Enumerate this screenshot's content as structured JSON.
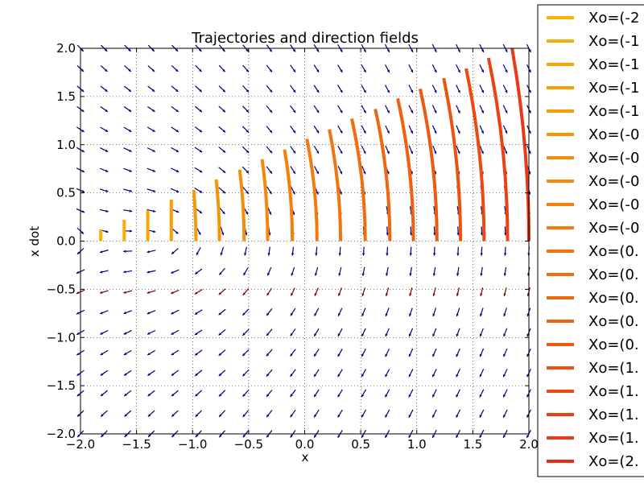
{
  "chart_data": {
    "type": "line",
    "title": "Trajectories and direction fields",
    "xlabel": "x",
    "ylabel": "x dot",
    "xlim": [
      -2.0,
      2.0
    ],
    "ylim": [
      -2.0,
      2.0
    ],
    "x_ticks": [
      "−2.0",
      "−1.5",
      "−1.0",
      "−0.5",
      "0.0",
      "0.5",
      "1.0",
      "1.5",
      "2.0"
    ],
    "y_ticks": [
      "−2.0",
      "−1.5",
      "−1.0",
      "−0.5",
      "0.0",
      "0.5",
      "1.0",
      "1.5",
      "2.0"
    ],
    "grid": true,
    "legend_position": "upper right, outside plot",
    "series": [
      {
        "name": "Xo=(-2",
        "color": "#fbb003",
        "points": [
          [
            -1.82,
            0.0
          ],
          [
            -1.82,
            0.12
          ]
        ]
      },
      {
        "name": "Xo=(-1",
        "color": "#fbab03",
        "points": [
          [
            -1.61,
            0.0
          ],
          [
            -1.61,
            0.22
          ]
        ]
      },
      {
        "name": "Xo=(-1",
        "color": "#faa504",
        "points": [
          [
            -1.4,
            0.0
          ],
          [
            -1.4,
            0.32
          ]
        ]
      },
      {
        "name": "Xo=(-1",
        "color": "#f99f05",
        "points": [
          [
            -1.19,
            0.0
          ],
          [
            -1.19,
            0.43
          ]
        ]
      },
      {
        "name": "Xo=(-1",
        "color": "#f89906",
        "points": [
          [
            -0.97,
            0.0
          ],
          [
            -0.99,
            0.53
          ]
        ]
      },
      {
        "name": "Xo=(-0",
        "color": "#f79307",
        "points": [
          [
            -0.76,
            0.0
          ],
          [
            -0.79,
            0.64
          ]
        ]
      },
      {
        "name": "Xo=(-0",
        "color": "#f68d08",
        "points": [
          [
            -0.54,
            0.0
          ],
          [
            -0.58,
            0.74
          ]
        ]
      },
      {
        "name": "Xo=(-0",
        "color": "#f58709",
        "points": [
          [
            -0.33,
            0.0
          ],
          [
            -0.38,
            0.85
          ]
        ]
      },
      {
        "name": "Xo=(-0",
        "color": "#f4800a",
        "points": [
          [
            -0.11,
            0.0
          ],
          [
            -0.18,
            0.95
          ]
        ]
      },
      {
        "name": "Xo=(-0",
        "color": "#f37a0b",
        "points": [
          [
            0.11,
            0.0
          ],
          [
            0.02,
            1.06
          ]
        ]
      },
      {
        "name": "Xo=(0.",
        "color": "#f2740c",
        "points": [
          [
            0.32,
            0.0
          ],
          [
            0.22,
            1.16
          ]
        ]
      },
      {
        "name": "Xo=(0.",
        "color": "#f16d0d",
        "points": [
          [
            0.54,
            0.0
          ],
          [
            0.42,
            1.27
          ]
        ]
      },
      {
        "name": "Xo=(0.",
        "color": "#f0670e",
        "points": [
          [
            0.76,
            0.0
          ],
          [
            0.63,
            1.37
          ]
        ]
      },
      {
        "name": "Xo=(0.",
        "color": "#ef600f",
        "points": [
          [
            0.97,
            0.0
          ],
          [
            0.83,
            1.48
          ]
        ]
      },
      {
        "name": "Xo=(0.",
        "color": "#ee5910",
        "points": [
          [
            1.18,
            0.0
          ],
          [
            1.03,
            1.58
          ]
        ]
      },
      {
        "name": "Xo=(1.",
        "color": "#ed5211",
        "points": [
          [
            1.39,
            0.0
          ],
          [
            1.24,
            1.69
          ]
        ]
      },
      {
        "name": "Xo=(1.",
        "color": "#ec4a12",
        "points": [
          [
            1.6,
            0.0
          ],
          [
            1.44,
            1.79
          ]
        ]
      },
      {
        "name": "Xo=(1.",
        "color": "#eb4213",
        "points": [
          [
            1.81,
            0.0
          ],
          [
            1.64,
            1.9
          ]
        ]
      },
      {
        "name": "Xo=(1.",
        "color": "#ea3914",
        "points": [
          [
            2.0,
            0.0
          ],
          [
            1.85,
            2.0
          ]
        ]
      },
      {
        "name": "Xo=(2.",
        "color": "#e92d15",
        "points": [
          [
            2.0,
            0.0
          ],
          [
            2.0,
            0.0
          ]
        ]
      }
    ],
    "direction_field": {
      "x_range": [
        -2.0,
        2.0
      ],
      "y_range": [
        -2.0,
        2.0
      ],
      "count": 20,
      "arrow_color": "#00007f",
      "highlight_row_y": -0.5,
      "highlight_color": "#7f0000"
    }
  }
}
